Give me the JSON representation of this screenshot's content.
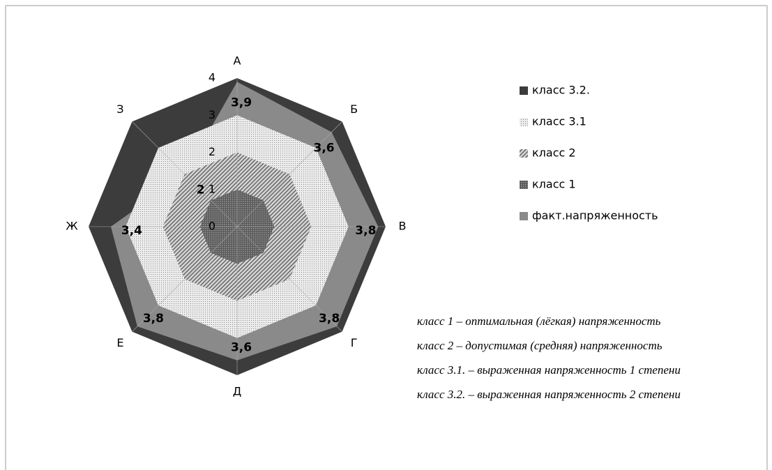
{
  "chart_data": {
    "type": "radar",
    "categories": [
      "А",
      "Б",
      "В",
      "Г",
      "Д",
      "Е",
      "Ж",
      "З"
    ],
    "rlim": [
      0,
      4
    ],
    "rticks": [
      0,
      1,
      2,
      3,
      4
    ],
    "series": [
      {
        "name": "класс 3.2.",
        "color": "#3c3c3c",
        "values": [
          4,
          4,
          4,
          4,
          4,
          4,
          4,
          4
        ]
      },
      {
        "name": "класс 3.1",
        "color": "#e0e0e0",
        "values": [
          3,
          3,
          3,
          3,
          3,
          3,
          3,
          3
        ]
      },
      {
        "name": "класс 2",
        "color": "#b4b4b4",
        "values": [
          2,
          2,
          2,
          2,
          2,
          2,
          2,
          2
        ]
      },
      {
        "name": "класс 1",
        "color": "#6e6e6e",
        "values": [
          1,
          1,
          1,
          1,
          1,
          1,
          1,
          1
        ]
      },
      {
        "name": "факт.напряженность",
        "color": "#8a8a8a",
        "values": [
          3.9,
          3.6,
          3.8,
          3.8,
          3.6,
          3.8,
          3.4,
          2
        ],
        "value_labels": [
          "3,9",
          "3,6",
          "3,8",
          "3,8",
          "3,6",
          "3,8",
          "3,4",
          "2"
        ]
      }
    ],
    "annotations": [
      "класс 1 – оптимальная (лёгкая) напряженность",
      "класс 2 – допустимая (средняя) напряженность",
      "класс 3.1. – выраженная напряженность 1 степени",
      "класс 3.2. – выраженная напряженность 2 степени"
    ]
  }
}
